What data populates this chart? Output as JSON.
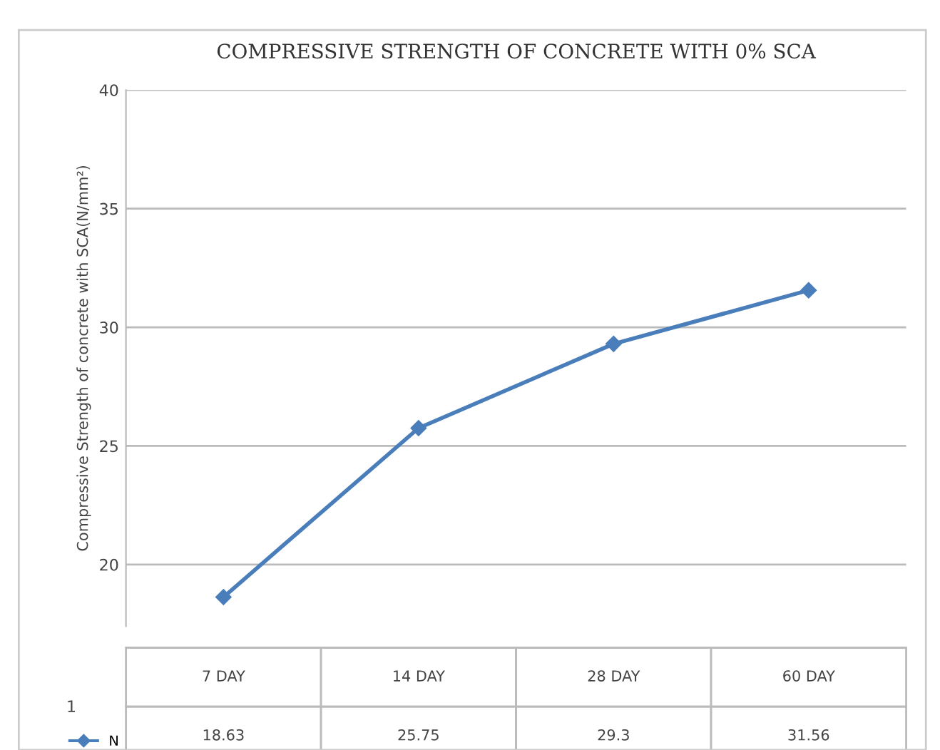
{
  "chart_data": {
    "type": "line",
    "title": "COMPRESSIVE STRENGTH OF CONCRETE WITH 0% SCA",
    "ylabel": "Compressive Strength of concrete with SCA(N/mm²)",
    "categories": [
      "7 DAY",
      "14 DAY",
      "28 DAY",
      "60 DAY"
    ],
    "series": [
      {
        "name": "N",
        "color": "#4a7ebb",
        "values": [
          18.63,
          25.75,
          29.3,
          31.56
        ]
      }
    ],
    "ylim": [
      17.4,
      40
    ],
    "yticks": [
      20,
      25,
      30,
      35,
      40
    ],
    "grid": "y",
    "marker": "diamond",
    "line_style": "solid",
    "legend": "bottom",
    "data_labels": true,
    "annotations": [
      "1"
    ]
  }
}
